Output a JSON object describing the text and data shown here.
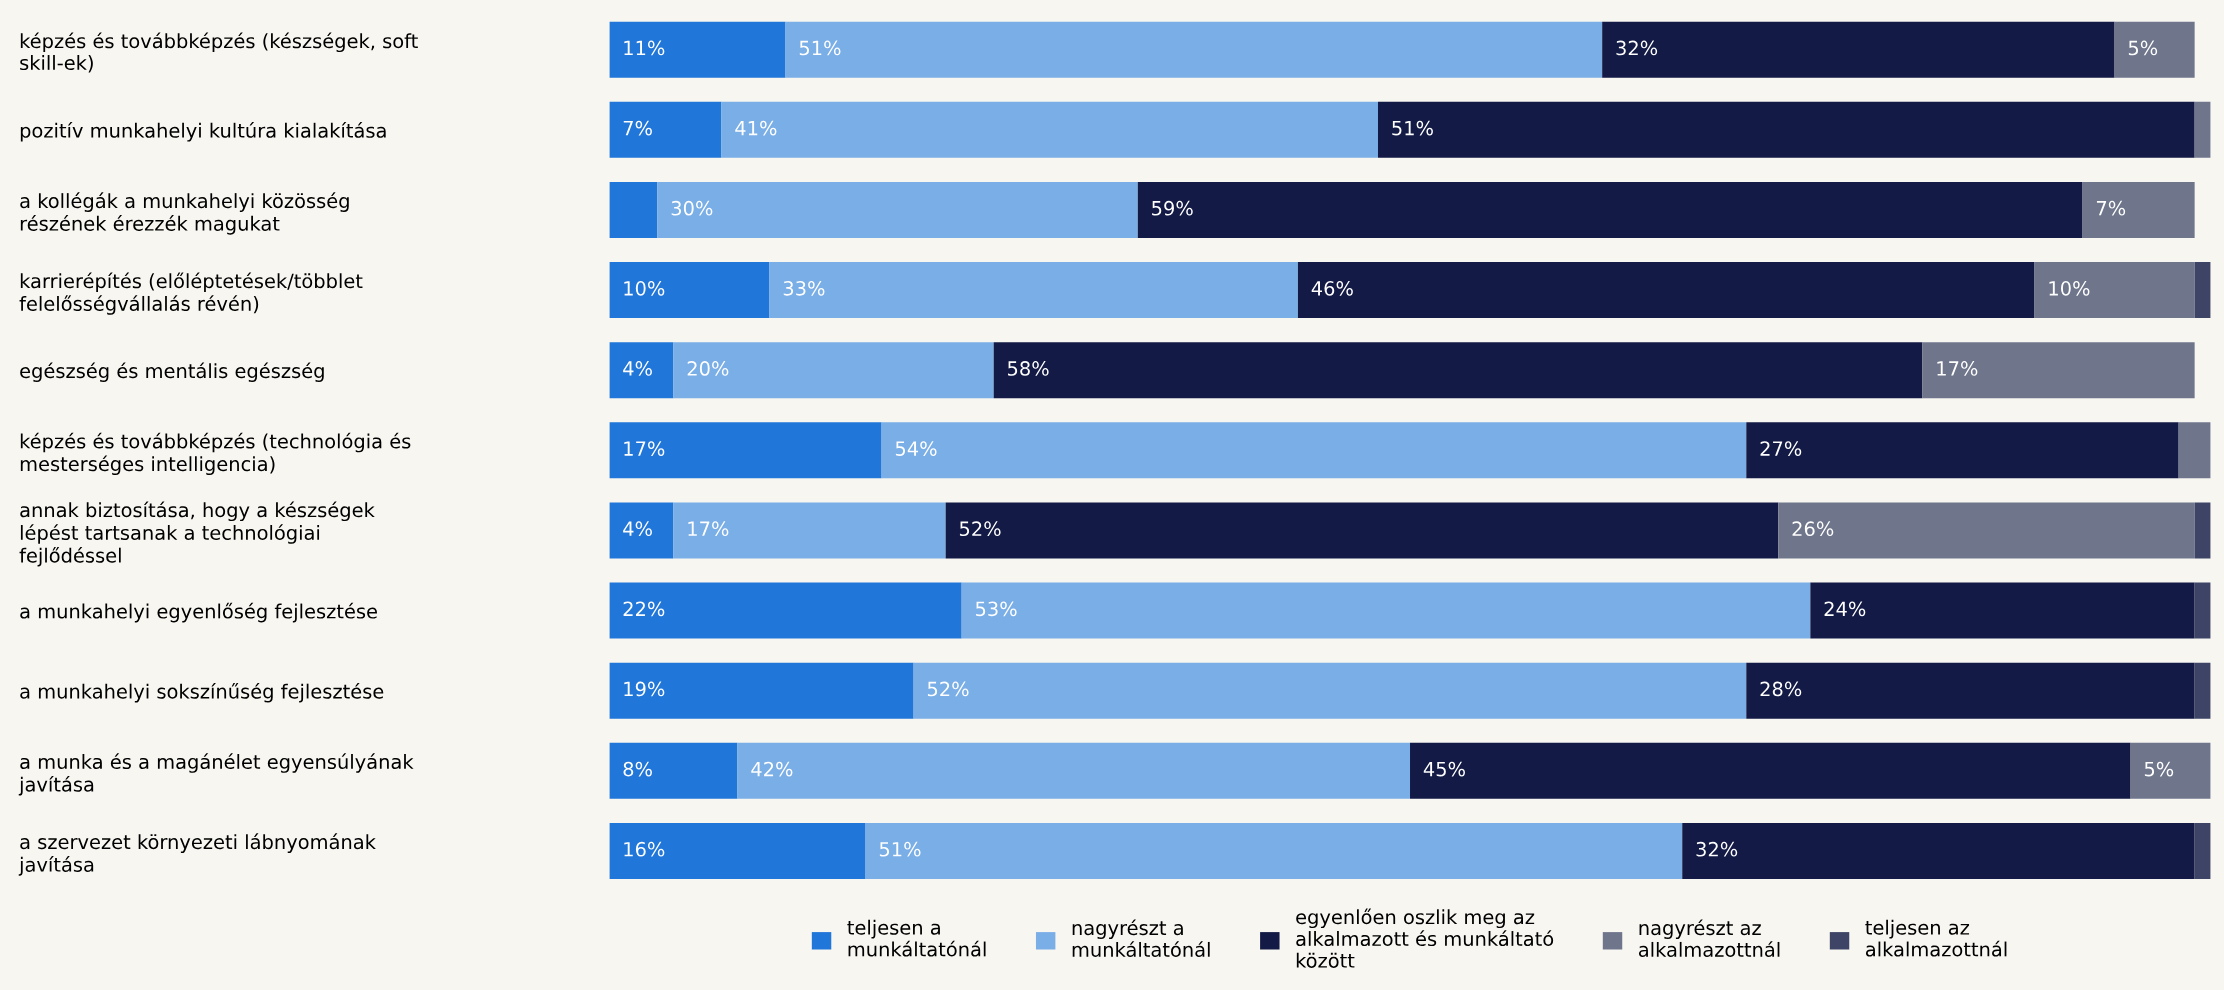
{
  "chart_data": {
    "type": "bar",
    "orientation": "horizontal",
    "stacked": true,
    "legend": "bottom",
    "grid": false,
    "categories": [
      "képzés és továbbképzés (készségek, soft\nskill-ek)",
      "pozitív munkahelyi kultúra kialakítása",
      "a kollégák a munkahelyi közösség\nrészének érezzék magukat",
      "karrierépítés (előléptetések/többlet\nfelelősségvállalás révén)",
      "egészség és mentális egészség",
      "képzés és továbbképzés (technológia és\nmesterséges intelligencia)",
      "annak biztosítása, hogy a készségek\nlépést tartsanak a technológiai\nfejlődéssel",
      "a munkahelyi egyenlőség fejlesztése",
      "a munkahelyi sokszínűség fejlesztése",
      "a munka és a magánélet egyensúlyának\njavítása",
      "a szervezet környezeti lábnyomának\njavítása"
    ],
    "series": [
      {
        "name": "teljesen a\nmunkáltatónál",
        "color": "#2176d9",
        "values": [
          11,
          7,
          3,
          10,
          4,
          17,
          4,
          22,
          19,
          8,
          16
        ],
        "value_labels": [
          "11%",
          "7%",
          null,
          "10%",
          "4%",
          "17%",
          "4%",
          "22%",
          "19%",
          "8%",
          "16%"
        ]
      },
      {
        "name": "nagyrészt a\nmunkáltatónál",
        "color": "#7aaee6",
        "values": [
          51,
          41,
          30,
          33,
          20,
          54,
          17,
          53,
          52,
          42,
          51
        ],
        "value_labels": [
          "51%",
          "41%",
          "30%",
          "33%",
          "20%",
          "54%",
          "17%",
          "53%",
          "52%",
          "42%",
          "51%"
        ]
      },
      {
        "name": "egyenlően oszlik meg az\nalkalmazott és munkáltató\nközött",
        "color": "#131a45",
        "values": [
          32,
          51,
          59,
          46,
          58,
          27,
          52,
          24,
          28,
          45,
          32
        ],
        "value_labels": [
          "32%",
          "51%",
          "59%",
          "46%",
          "58%",
          "27%",
          "52%",
          "24%",
          "28%",
          "45%",
          "32%"
        ]
      },
      {
        "name": "nagyrészt az\nalkalmazottnál",
        "color": "#6f768c",
        "values": [
          5,
          1,
          7,
          10,
          17,
          2,
          26,
          null,
          null,
          5,
          null
        ],
        "value_labels": [
          "5%",
          null,
          "7%",
          "10%",
          "17%",
          null,
          "26%",
          null,
          null,
          "5%",
          null
        ]
      },
      {
        "name": "teljesen az\nalkalmazottnál",
        "color": "#3d4466",
        "values": [
          null,
          null,
          null,
          1,
          null,
          null,
          1,
          1,
          1,
          null,
          1
        ],
        "value_labels": [
          null,
          null,
          null,
          null,
          null,
          null,
          null,
          null,
          null,
          null,
          null
        ]
      }
    ]
  }
}
